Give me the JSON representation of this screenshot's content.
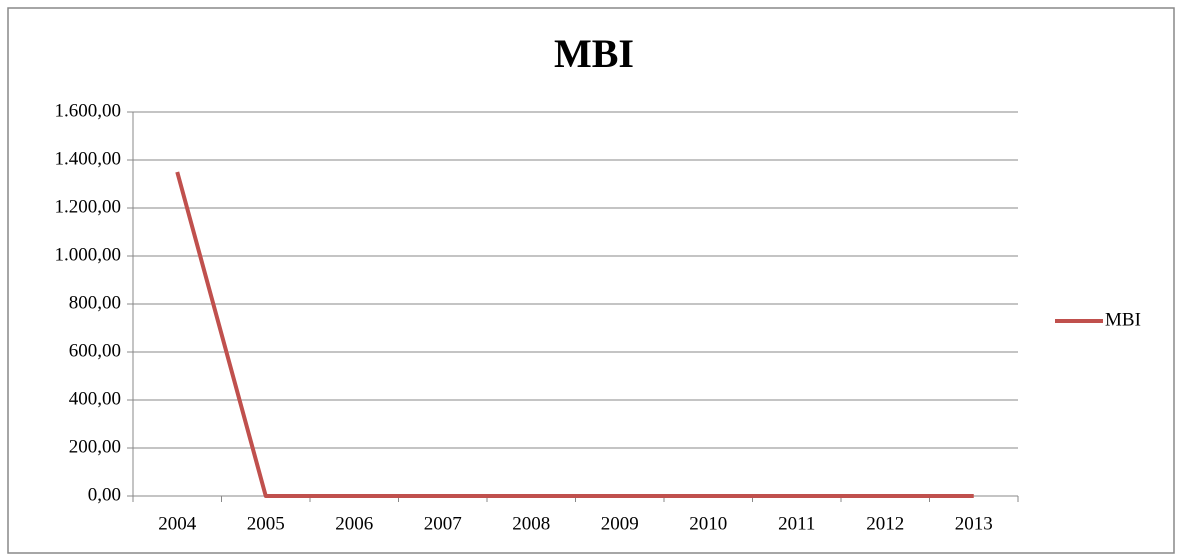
{
  "chart_data": {
    "type": "line",
    "title": "MBI",
    "categories": [
      "2004",
      "2005",
      "2006",
      "2007",
      "2008",
      "2009",
      "2010",
      "2011",
      "2012",
      "2013"
    ],
    "series": [
      {
        "name": "MBI",
        "color": "#c0504d",
        "values": [
          1350,
          0,
          0,
          0,
          0,
          0,
          0,
          0,
          0,
          0
        ]
      }
    ],
    "ylim": [
      0,
      1600
    ],
    "yticks": [
      {
        "value": 0,
        "label": "0,00"
      },
      {
        "value": 200,
        "label": "200,00"
      },
      {
        "value": 400,
        "label": "400,00"
      },
      {
        "value": 600,
        "label": "600,00"
      },
      {
        "value": 800,
        "label": "800,00"
      },
      {
        "value": 1000,
        "label": "1.000,00"
      },
      {
        "value": 1200,
        "label": "1.200,00"
      },
      {
        "value": 1400,
        "label": "1.400,00"
      },
      {
        "value": 1600,
        "label": "1.600,00"
      }
    ],
    "grid": true,
    "legend": "right"
  }
}
